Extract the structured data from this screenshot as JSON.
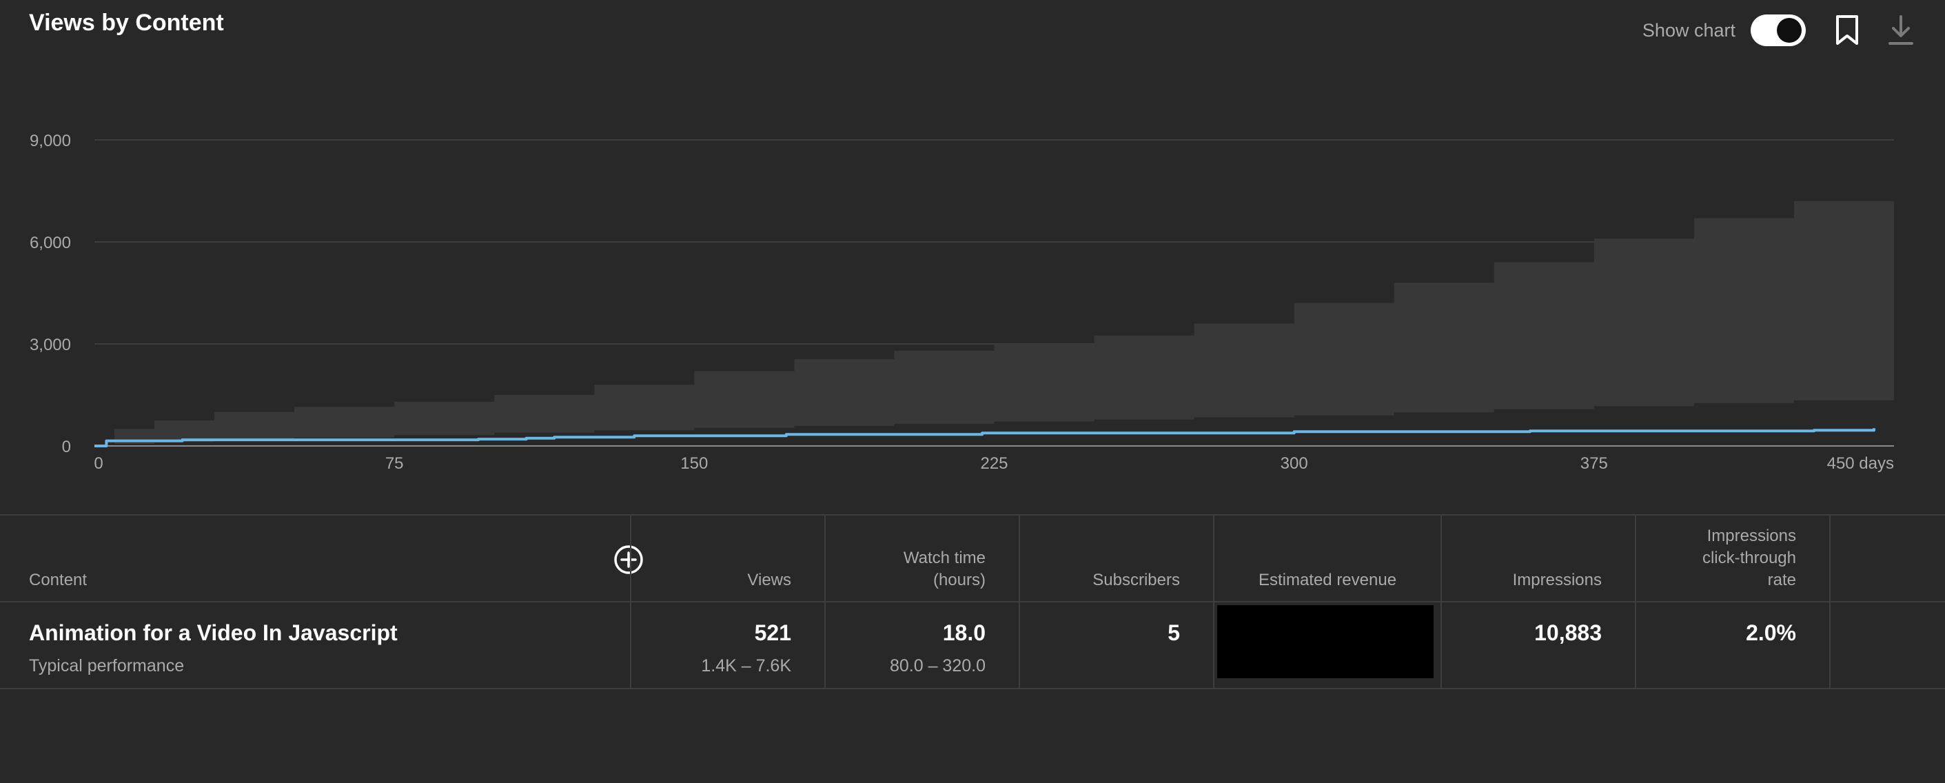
{
  "header": {
    "title": "Views by Content",
    "show_chart_label": "Show chart",
    "toggle_on": true
  },
  "icons": {
    "toggle": "toggle-switch-icon",
    "bookmark": "bookmark-icon",
    "download": "download-icon",
    "add": "add-circle-icon"
  },
  "colors": {
    "background": "#282828",
    "series_line": "#6ab8e6",
    "band_fill": "#383838",
    "gridline": "#3e3e3e"
  },
  "chart_data": {
    "type": "area",
    "ylim": [
      0,
      9000
    ],
    "xlim": [
      0,
      450
    ],
    "y_ticks": [
      "9,000",
      "6,000",
      "3,000",
      "0"
    ],
    "y_tick_values": [
      9000,
      6000,
      3000,
      0
    ],
    "x_ticks": [
      "0",
      "75",
      "150",
      "225",
      "300",
      "375",
      "450 days"
    ],
    "x_tick_values": [
      0,
      75,
      150,
      225,
      300,
      375,
      450
    ],
    "grid": true,
    "series": [
      {
        "name": "Typical performance",
        "kind": "band",
        "x": [
          0,
          5,
          15,
          30,
          50,
          75,
          100,
          125,
          150,
          175,
          200,
          225,
          250,
          275,
          300,
          325,
          350,
          375,
          400,
          425,
          450
        ],
        "upper": [
          0,
          500,
          750,
          1000,
          1150,
          1300,
          1500,
          1800,
          2200,
          2550,
          2800,
          3000,
          3250,
          3600,
          4200,
          4800,
          5400,
          6100,
          6700,
          7200,
          7600
        ],
        "lower": [
          0,
          60,
          120,
          180,
          250,
          320,
          390,
          460,
          530,
          590,
          650,
          720,
          780,
          840,
          900,
          990,
          1080,
          1170,
          1260,
          1340,
          1430
        ]
      },
      {
        "name": "Animation for a Video In Javascript",
        "kind": "line",
        "x": [
          0,
          3,
          22,
          96,
          108,
          115,
          135,
          173,
          222,
          300,
          359,
          430,
          445
        ],
        "y": [
          0,
          150,
          180,
          200,
          230,
          260,
          300,
          340,
          380,
          420,
          440,
          460,
          521
        ]
      }
    ]
  },
  "table": {
    "columns": [
      {
        "label": "Content"
      },
      {
        "label": "Views"
      },
      {
        "label": "Watch time\n(hours)"
      },
      {
        "label": "Subscribers"
      },
      {
        "label": "Estimated revenue"
      },
      {
        "label": "Impressions"
      },
      {
        "label": "Impressions\nclick-through\nrate"
      }
    ],
    "row": {
      "title": "Animation for a Video In Javascript",
      "subtitle": "Typical performance",
      "views": "521",
      "views_range": "1.4K – 7.6K",
      "watch_time": "18.0",
      "watch_time_range": "80.0 – 320.0",
      "subscribers": "5",
      "estimated_revenue": "",
      "impressions": "10,883",
      "ctr": "2.0%"
    }
  }
}
